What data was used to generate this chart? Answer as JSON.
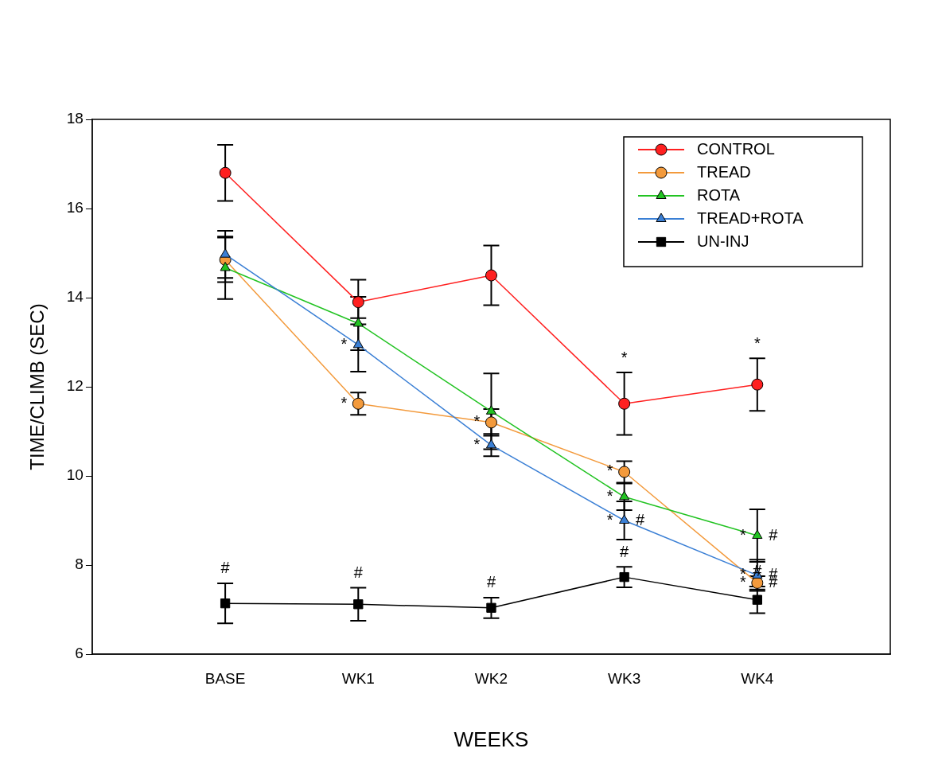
{
  "chart_data": {
    "type": "line",
    "xlabel": "WEEKS",
    "ylabel": "TIME/CLIMB (SEC)",
    "categories": [
      "BASE",
      "WK1",
      "WK2",
      "WK3",
      "WK4"
    ],
    "ylim": [
      6,
      18
    ],
    "yticks": [
      6,
      8,
      10,
      12,
      14,
      16,
      18
    ],
    "grid": false,
    "legend": "top right",
    "line_style": "solid",
    "series": [
      {
        "name": "CONTROL",
        "color": "#ff2020",
        "marker": "circle",
        "values": [
          16.8,
          13.9,
          14.5,
          11.62,
          12.05
        ],
        "errors": [
          0.63,
          0.5,
          0.67,
          0.7,
          0.59
        ]
      },
      {
        "name": "TREAD",
        "color": "#f39a3c",
        "marker": "circle",
        "values": [
          14.85,
          11.62,
          11.2,
          10.09,
          7.6
        ],
        "errors": [
          0.5,
          0.25,
          0.3,
          0.24,
          0.15
        ]
      },
      {
        "name": "ROTA",
        "color": "#22c322",
        "marker": "triangle",
        "values": [
          14.67,
          13.42,
          11.45,
          9.53,
          8.66
        ],
        "errors": [
          0.7,
          0.6,
          0.85,
          0.3,
          0.59
        ]
      },
      {
        "name": "TREAD+ROTA",
        "color": "#3a7fd5",
        "marker": "triangle",
        "values": [
          14.97,
          12.94,
          10.69,
          9.0,
          7.77
        ],
        "errors": [
          0.53,
          0.6,
          0.25,
          0.43,
          0.35
        ]
      },
      {
        "name": "UN-INJ",
        "color": "#000000",
        "marker": "square",
        "values": [
          7.14,
          7.12,
          7.04,
          7.73,
          7.22
        ],
        "errors": [
          0.45,
          0.37,
          0.23,
          0.23,
          0.3
        ]
      }
    ],
    "annotations": [
      {
        "text": "#",
        "x": "BASE",
        "y": 7.14
      },
      {
        "text": "*",
        "x": "WK1",
        "y": 12.94
      },
      {
        "text": "*",
        "x": "WK1",
        "y": 11.62
      },
      {
        "text": "#",
        "x": "WK1",
        "y": 7.12
      },
      {
        "text": "*",
        "x": "WK2",
        "y": 11.2
      },
      {
        "text": "*",
        "x": "WK2",
        "y": 10.69
      },
      {
        "text": "#",
        "x": "WK2",
        "y": 7.04
      },
      {
        "text": "*",
        "x": "WK3",
        "y": 11.62
      },
      {
        "text": "*",
        "x": "WK3",
        "y": 10.09
      },
      {
        "text": "*",
        "x": "WK3",
        "y": 9.53
      },
      {
        "text": "*",
        "x": "WK3",
        "y": 9.0
      },
      {
        "text": "#",
        "x": "WK3",
        "y": 9.0
      },
      {
        "text": "#",
        "x": "WK3",
        "y": 7.73
      },
      {
        "text": "*",
        "x": "WK4",
        "y": 12.05
      },
      {
        "text": "*",
        "x": "WK4",
        "y": 8.66
      },
      {
        "text": "#",
        "x": "WK4",
        "y": 8.66
      },
      {
        "text": "*",
        "x": "WK4",
        "y": 7.77
      },
      {
        "text": "#",
        "x": "WK4",
        "y": 7.77
      },
      {
        "text": "*",
        "x": "WK4",
        "y": 7.6
      },
      {
        "text": "#",
        "x": "WK4",
        "y": 7.6
      },
      {
        "text": "#",
        "x": "WK4",
        "y": 7.22
      }
    ]
  }
}
